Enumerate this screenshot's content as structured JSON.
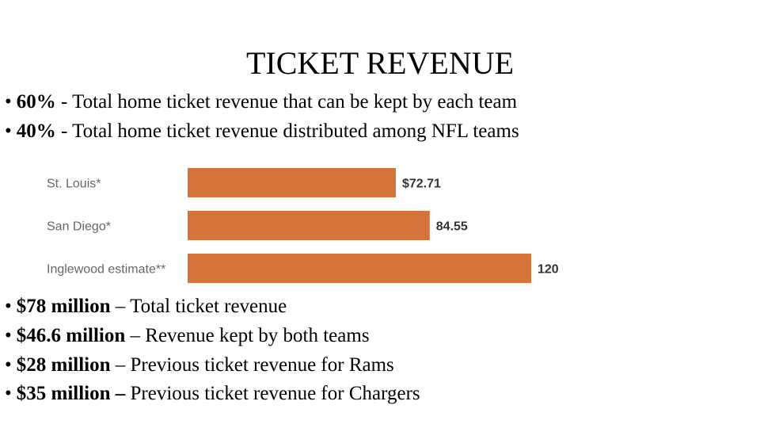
{
  "slide": {
    "title": "TICKET REVENUE",
    "top_bullets": [
      {
        "bullet": "•",
        "lead": "60%",
        "sep": " - ",
        "text": "Total home ticket revenue that can be kept by each team"
      },
      {
        "bullet": "•",
        "lead": "40%",
        "sep": " - ",
        "text": "Total home ticket revenue distributed among NFL teams"
      }
    ],
    "bottom_bullets": [
      {
        "bullet": "•",
        "lead": "$78 million",
        "sep": " – ",
        "text": "Total ticket revenue"
      },
      {
        "bullet": "•",
        "lead": "$46.6 million",
        "sep": " – ",
        "text": "Revenue kept by both teams"
      },
      {
        "bullet": "•",
        "lead": "$28 million",
        "sep": " – ",
        "text": "Previous ticket revenue for Rams"
      },
      {
        "bullet": "•",
        "lead": "$35 million –",
        "sep": " ",
        "text": "Previous ticket revenue for Chargers"
      }
    ]
  },
  "chart_data": {
    "type": "bar",
    "orientation": "horizontal",
    "categories": [
      "St. Louis*",
      "San Diego*",
      "Inglewood estimate**"
    ],
    "values": [
      72.71,
      84.55,
      120
    ],
    "value_labels": [
      "$72.71",
      "84.55",
      "120"
    ],
    "title": "",
    "xlabel": "",
    "ylabel": "",
    "xlim": [
      0,
      120
    ],
    "grid": false,
    "bar_color": "#d4733a"
  }
}
